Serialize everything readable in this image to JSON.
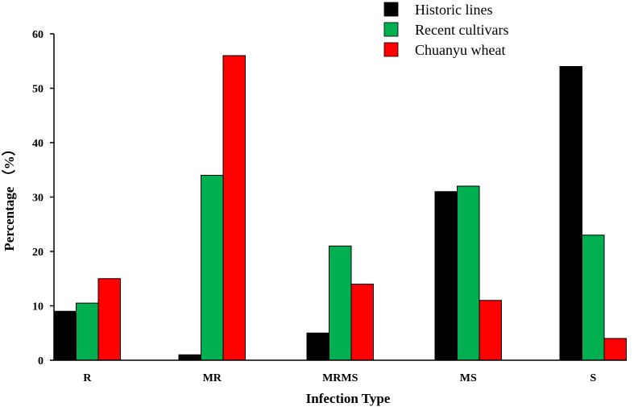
{
  "chart_data": {
    "type": "bar",
    "categories": [
      "R",
      "MR",
      "MRMS",
      "MS",
      "S"
    ],
    "series": [
      {
        "name": "Historic lines",
        "color": "#000000",
        "values": [
          9,
          1,
          5,
          31,
          54
        ]
      },
      {
        "name": "Recent cultivars",
        "color": "#00b050",
        "values": [
          10.5,
          34,
          21,
          32,
          23
        ]
      },
      {
        "name": "Chuanyu wheat",
        "color": "#ff0000",
        "values": [
          15,
          56,
          14,
          11,
          4
        ]
      }
    ],
    "xlabel": "Infection Type",
    "ylabel": "Percentage （%）",
    "ylim": [
      0,
      60
    ],
    "yticks": [
      0,
      10,
      20,
      30,
      40,
      50,
      60
    ],
    "grid": false,
    "legend_position": "top-right"
  }
}
